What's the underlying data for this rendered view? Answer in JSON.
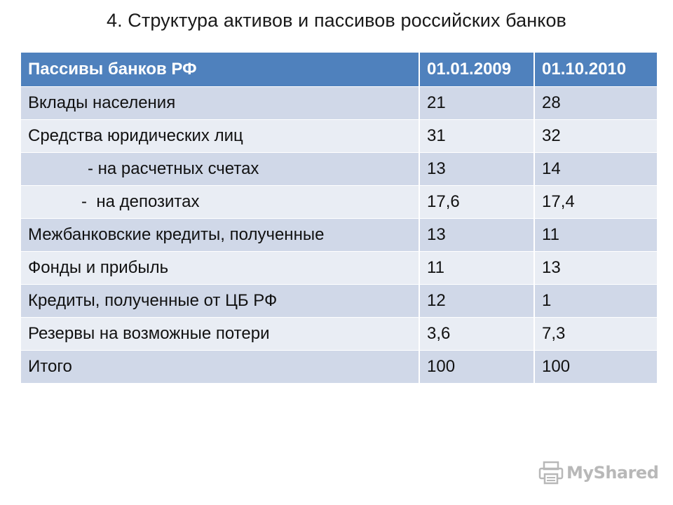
{
  "title": "4. Структура активов и пассивов российских банков",
  "table": {
    "headers": [
      "Пассивы банков РФ",
      "01.01.2009",
      "01.10.2010"
    ],
    "rows": [
      [
        "Вклады населения",
        "21",
        "28"
      ],
      [
        "Средства юридических лиц",
        "31",
        "32"
      ],
      [
        "- на расчетных счетах",
        "13",
        "14"
      ],
      [
        "-  на депозитах",
        "17,6",
        "17,4"
      ],
      [
        "Межбанковские кредиты, полученные",
        "13",
        "11"
      ],
      [
        "Фонды и прибыль",
        "11",
        "13"
      ],
      [
        "Кредиты, полученные от ЦБ РФ",
        "12",
        "1"
      ],
      [
        "Резервы на возможные потери",
        "3,6",
        "7,3"
      ],
      [
        "Итого",
        "100",
        "100"
      ]
    ]
  },
  "colors": {
    "header_bg": "#4f81bd",
    "row_dark": "#d0d8e8",
    "row_light": "#e9edf4"
  },
  "watermark": {
    "text": "MyShared",
    "icon": "printer-icon"
  }
}
